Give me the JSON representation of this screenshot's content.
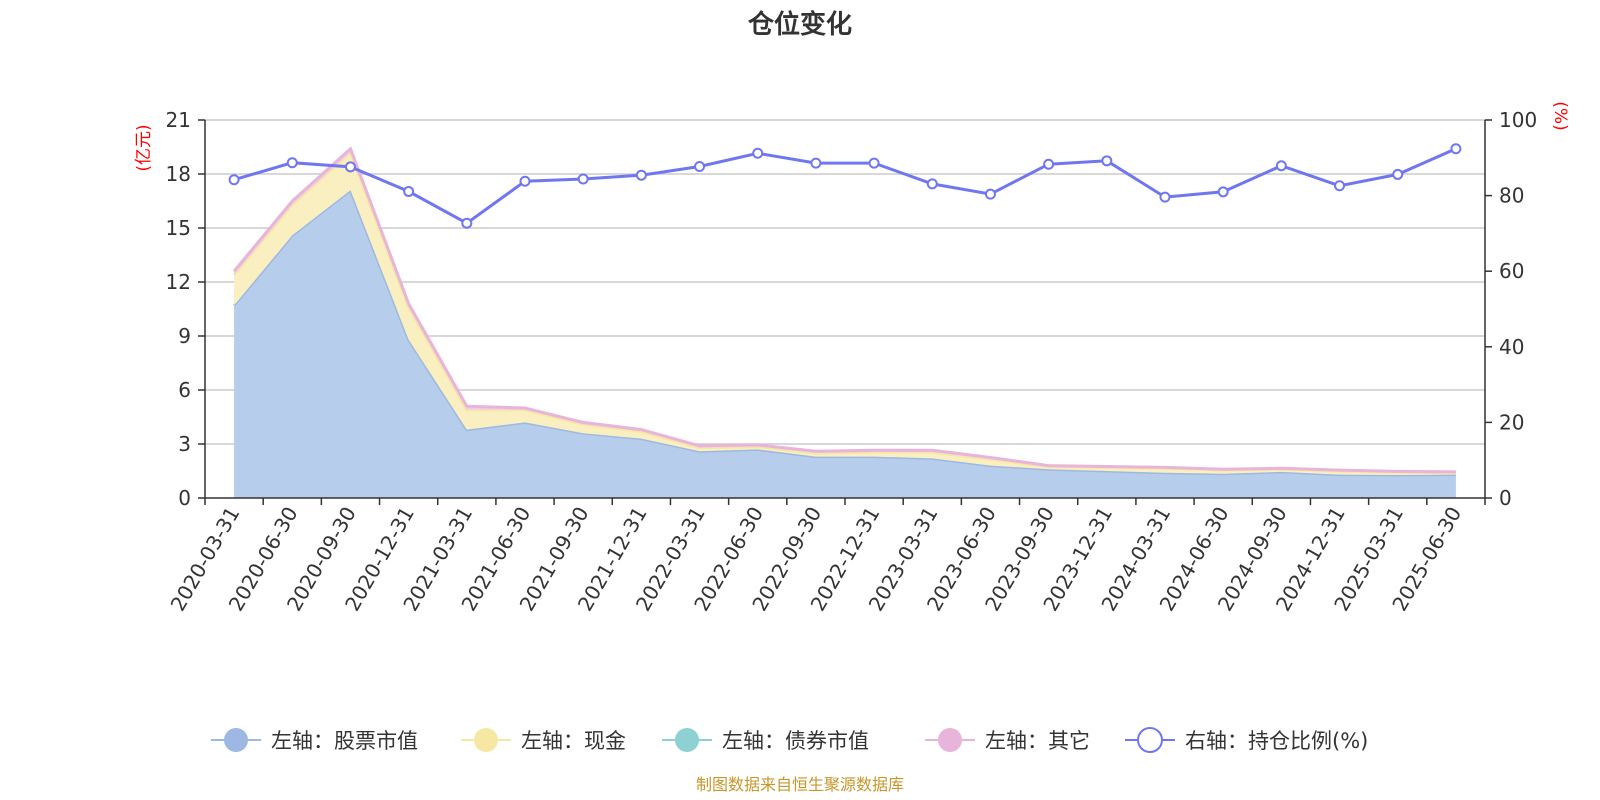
{
  "chart_data": {
    "type": "area",
    "title": "仓位变化",
    "left_axis_unit": "(亿元)",
    "right_axis_unit": "(%)",
    "left_ylim": [
      0,
      21
    ],
    "left_yticks": [
      0,
      3,
      6,
      9,
      12,
      15,
      18,
      21
    ],
    "right_ylim": [
      0,
      100
    ],
    "right_yticks": [
      0,
      20,
      40,
      60,
      80,
      100
    ],
    "grid": true,
    "legend_placement": "bottom",
    "categories": [
      "2020-03-31",
      "2020-06-30",
      "2020-09-30",
      "2020-12-31",
      "2021-03-31",
      "2021-06-30",
      "2021-09-30",
      "2021-12-31",
      "2022-03-31",
      "2022-06-30",
      "2022-09-30",
      "2022-12-31",
      "2023-03-31",
      "2023-06-30",
      "2023-09-30",
      "2023-12-31",
      "2024-03-31",
      "2024-06-30",
      "2024-09-30",
      "2024-12-31",
      "2025-03-31",
      "2025-06-30"
    ],
    "series": [
      {
        "name": "左轴：股票市值",
        "axis": "left",
        "kind": "stacked-area",
        "color": "#9db8e2",
        "fill": "#b7cdec",
        "values": [
          10.7,
          14.6,
          17.1,
          8.8,
          3.8,
          4.2,
          3.6,
          3.3,
          2.6,
          2.7,
          2.3,
          2.3,
          2.2,
          1.8,
          1.6,
          1.5,
          1.4,
          1.35,
          1.45,
          1.3,
          1.28,
          1.3
        ]
      },
      {
        "name": "左轴：现金",
        "axis": "left",
        "kind": "stacked-area",
        "color": "#f6e7a3",
        "fill": "#faefc0",
        "values": [
          1.7,
          1.7,
          2.1,
          1.8,
          1.1,
          0.7,
          0.5,
          0.4,
          0.2,
          0.15,
          0.2,
          0.25,
          0.35,
          0.35,
          0.15,
          0.2,
          0.25,
          0.2,
          0.15,
          0.2,
          0.15,
          0.1
        ]
      },
      {
        "name": "左轴：债券市值",
        "axis": "left",
        "kind": "stacked-area",
        "color": "#8fd1d3",
        "fill": "#a9dcdd",
        "values": [
          0,
          0,
          0,
          0,
          0,
          0,
          0,
          0,
          0,
          0,
          0,
          0,
          0,
          0,
          0,
          0,
          0,
          0,
          0,
          0,
          0,
          0
        ]
      },
      {
        "name": "左轴：其它",
        "axis": "left",
        "kind": "stacked-area",
        "color": "#e8b4d9",
        "fill": "#f0cde6",
        "values": [
          0.2,
          0.2,
          0.2,
          0.2,
          0.2,
          0.1,
          0.1,
          0.1,
          0.1,
          0.1,
          0.1,
          0.1,
          0.1,
          0.1,
          0.05,
          0.05,
          0.05,
          0.05,
          0.05,
          0.05,
          0.05,
          0.05
        ]
      },
      {
        "name": "右轴：持仓比例(%)",
        "axis": "right",
        "kind": "line",
        "color": "#7077ee",
        "values": [
          84.2,
          88.7,
          87.6,
          81.1,
          72.7,
          83.8,
          84.4,
          85.4,
          87.7,
          91.2,
          88.6,
          88.6,
          83.1,
          80.4,
          88.3,
          89.2,
          79.6,
          81.0,
          87.9,
          82.6,
          85.6,
          92.4
        ]
      }
    ]
  },
  "source_text": "制图数据来自恒生聚源数据库"
}
